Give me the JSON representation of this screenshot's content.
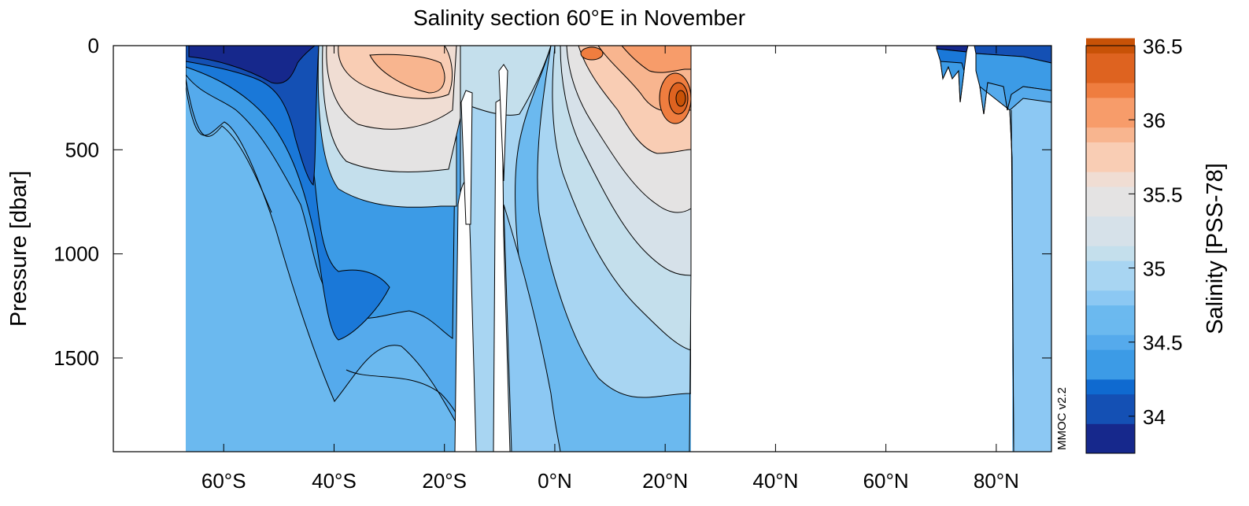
{
  "chart_data": {
    "type": "heatmap",
    "title": "Salinity section 60°E in November",
    "xlabel": "",
    "ylabel": "Pressure [dbar]",
    "colorbar_label": "Salinity [PSS-78]",
    "watermark": "MMOC v2.2",
    "xlim": [
      -80,
      90
    ],
    "ylim": [
      1950,
      0
    ],
    "x_ticks": [
      -60,
      -40,
      -20,
      0,
      20,
      40,
      60,
      80
    ],
    "x_tick_labels": [
      "60°S",
      "40°S",
      "20°S",
      "0°N",
      "20°N",
      "40°N",
      "60°N",
      "80°N"
    ],
    "y_ticks": [
      0,
      500,
      1000,
      1500
    ],
    "y_tick_labels": [
      "0",
      "500",
      "1000",
      "1500"
    ],
    "colorbar_range": [
      33.75,
      36.5
    ],
    "colorbar_ticks": [
      34,
      34.5,
      35,
      35.5,
      36,
      36.5
    ],
    "colorbar_tick_labels": [
      "34",
      "34.5",
      "35",
      "35.5",
      "36",
      "36.5"
    ],
    "colorbar_step": 0.1,
    "colormap": [
      "#16288c",
      "#1450b4",
      "#0f6ad0",
      "#3c9be6",
      "#55aaec",
      "#6bb9ef",
      "#8cc8f3",
      "#a8d5f2",
      "#c4dfec",
      "#d6e1e9",
      "#e4e3e3",
      "#f0ddd3",
      "#f9cdb4",
      "#f8b58f",
      "#f79c6a",
      "#ef7d3f",
      "#de6320",
      "#c85207"
    ],
    "data_columns": [
      {
        "lat": -67.5,
        "salinity": [
          34.05,
          34.45,
          34.62,
          34.68,
          34.7,
          34.71
        ]
      },
      {
        "lat": -62.5,
        "salinity": [
          33.95,
          34.4,
          34.62,
          34.7,
          34.71,
          34.72
        ]
      },
      {
        "lat": -57.5,
        "salinity": [
          33.9,
          34.3,
          34.55,
          34.68,
          34.7,
          34.72
        ]
      },
      {
        "lat": -52.5,
        "salinity": [
          33.95,
          34.2,
          34.45,
          34.62,
          34.68,
          34.7
        ]
      },
      {
        "lat": -47.5,
        "salinity": [
          34.05,
          34.2,
          34.35,
          34.55,
          34.62,
          34.66
        ]
      },
      {
        "lat": -42.5,
        "salinity": [
          34.55,
          34.5,
          34.35,
          34.38,
          34.52,
          34.62
        ]
      },
      {
        "lat": -37.5,
        "salinity": [
          35.5,
          35.15,
          34.8,
          34.42,
          34.44,
          34.6
        ]
      },
      {
        "lat": -32.5,
        "salinity": [
          35.5,
          35.35,
          34.95,
          34.55,
          34.46,
          34.58
        ]
      },
      {
        "lat": -27.5,
        "salinity": [
          35.55,
          35.4,
          35.05,
          34.7,
          34.55,
          34.6
        ]
      },
      {
        "lat": -22.5,
        "salinity": [
          35.35,
          35.4,
          35.1,
          34.8,
          34.62,
          34.64
        ]
      },
      {
        "lat": -17.5,
        "salinity": [
          34.95,
          35.15,
          35.0,
          34.8,
          34.68,
          34.67
        ]
      },
      {
        "lat": -12.5,
        "salinity": [
          35.05,
          35.1,
          34.95,
          34.78,
          34.7,
          34.7
        ]
      },
      {
        "lat": -7.5,
        "salinity": [
          35.15,
          35.05,
          34.85,
          34.76,
          34.73,
          34.72
        ]
      },
      {
        "lat": -2.5,
        "salinity": [
          35.25,
          35.05,
          34.9,
          34.8,
          34.76,
          34.74
        ]
      },
      {
        "lat": 2.5,
        "salinity": [
          35.55,
          35.1,
          35.0,
          34.9,
          34.82,
          34.77
        ]
      },
      {
        "lat": 7.5,
        "salinity": [
          36.05,
          35.25,
          35.15,
          35.0,
          34.88,
          34.8
        ]
      },
      {
        "lat": 12.5,
        "salinity": [
          35.9,
          35.45,
          35.35,
          35.15,
          34.98,
          34.85
        ]
      },
      {
        "lat": 17.5,
        "salinity": [
          36.0,
          35.75,
          35.5,
          35.3,
          35.1,
          34.92
        ]
      },
      {
        "lat": 22.5,
        "salinity": [
          36.1,
          36.3,
          35.55,
          35.35,
          35.18,
          34.98
        ]
      }
    ],
    "pressure_levels": [
      10,
      250,
      600,
      1000,
      1400,
      1850
    ]
  }
}
